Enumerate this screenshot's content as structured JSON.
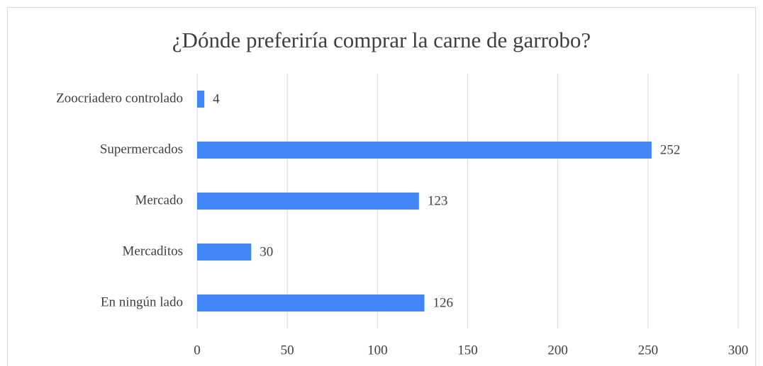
{
  "chart_data": {
    "type": "bar",
    "orientation": "horizontal",
    "title": "¿Dónde preferiría comprar la carne de garrobo?",
    "categories": [
      "Zoocriadero controlado",
      "Supermercados",
      "Mercado",
      "Mercaditos",
      "En ningún lado"
    ],
    "values": [
      4,
      252,
      123,
      30,
      126
    ],
    "color": "#4285f4",
    "xlim": [
      0,
      300
    ],
    "xticks": [
      0,
      50,
      100,
      150,
      200,
      250,
      300
    ],
    "grid": true
  }
}
